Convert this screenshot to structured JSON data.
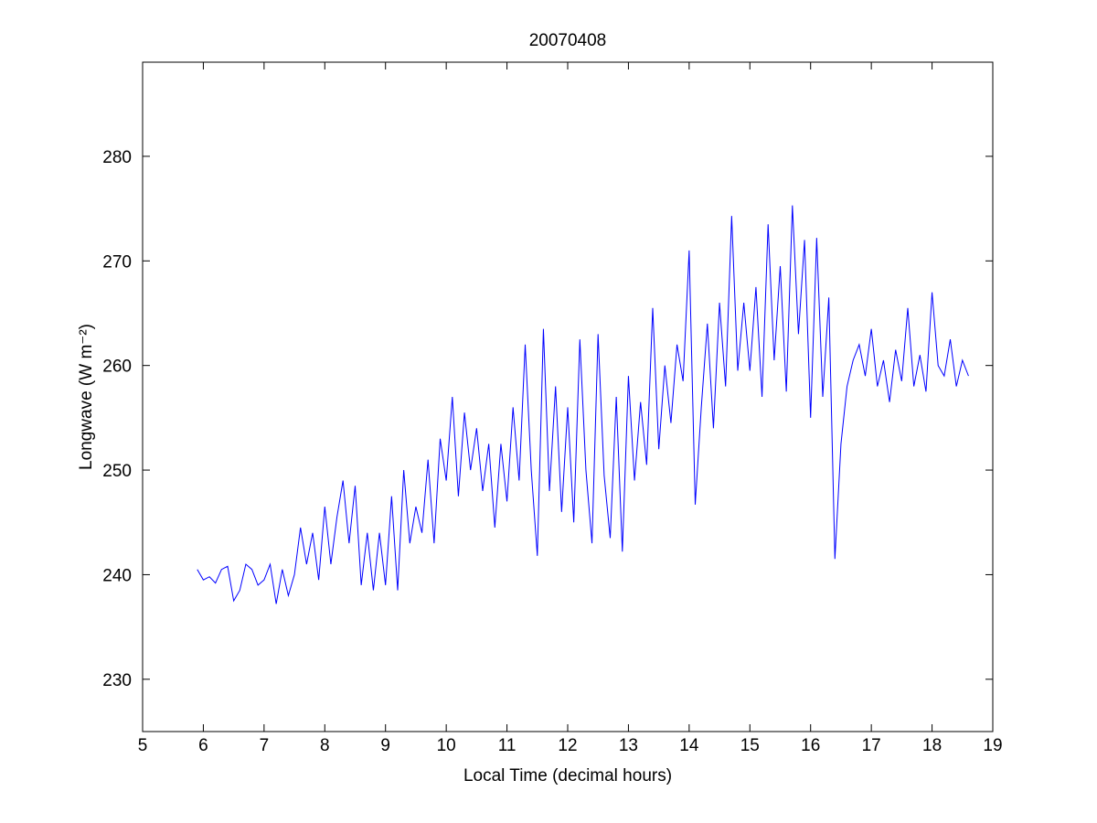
{
  "chart_data": {
    "type": "line",
    "title": "20070408",
    "xlabel": "Local Time (decimal hours)",
    "ylabel": "Longwave (W m⁻²)",
    "xlim": [
      5,
      19
    ],
    "ylim": [
      225,
      289
    ],
    "xticks": [
      5,
      6,
      7,
      8,
      9,
      10,
      11,
      12,
      13,
      14,
      15,
      16,
      17,
      18,
      19
    ],
    "yticks": [
      230,
      240,
      250,
      260,
      270,
      280
    ],
    "x": [
      5.9,
      6.0,
      6.1,
      6.2,
      6.3,
      6.4,
      6.5,
      6.6,
      6.7,
      6.8,
      6.9,
      7.0,
      7.1,
      7.2,
      7.3,
      7.4,
      7.5,
      7.6,
      7.7,
      7.8,
      7.9,
      8.0,
      8.1,
      8.2,
      8.3,
      8.4,
      8.5,
      8.6,
      8.7,
      8.8,
      8.9,
      9.0,
      9.1,
      9.2,
      9.3,
      9.4,
      9.5,
      9.6,
      9.7,
      9.8,
      9.9,
      10.0,
      10.1,
      10.2,
      10.3,
      10.4,
      10.5,
      10.6,
      10.7,
      10.8,
      10.9,
      11.0,
      11.1,
      11.2,
      11.3,
      11.4,
      11.5,
      11.6,
      11.7,
      11.8,
      11.9,
      12.0,
      12.1,
      12.2,
      12.3,
      12.4,
      12.5,
      12.6,
      12.7,
      12.8,
      12.9,
      13.0,
      13.1,
      13.2,
      13.3,
      13.4,
      13.5,
      13.6,
      13.7,
      13.8,
      13.9,
      14.0,
      14.1,
      14.2,
      14.3,
      14.4,
      14.5,
      14.6,
      14.7,
      14.8,
      14.9,
      15.0,
      15.1,
      15.2,
      15.3,
      15.4,
      15.5,
      15.6,
      15.7,
      15.8,
      15.9,
      16.0,
      16.1,
      16.2,
      16.3,
      16.4,
      16.5,
      16.6,
      16.7,
      16.8,
      16.9,
      17.0,
      17.1,
      17.2,
      17.3,
      17.4,
      17.5,
      17.6,
      17.7,
      17.8,
      17.9,
      18.0,
      18.1,
      18.2,
      18.3,
      18.4,
      18.5,
      18.6
    ],
    "series": [
      {
        "color": "#0000ff",
        "values": [
          240.5,
          239.5,
          239.8,
          239.2,
          240.5,
          240.8,
          237.5,
          238.5,
          241,
          240.5,
          239,
          239.5,
          241,
          237.2,
          240.5,
          238,
          240,
          244.5,
          241,
          244,
          239.5,
          246.5,
          241,
          245.5,
          249,
          243,
          248.5,
          239,
          244,
          238.5,
          244,
          239,
          247.5,
          238.5,
          250,
          243,
          246.5,
          244,
          251,
          243,
          253,
          249,
          257,
          247.5,
          255.5,
          250,
          254,
          248,
          252.5,
          244.5,
          252.5,
          247,
          256,
          249,
          262,
          250,
          241.8,
          263.5,
          248,
          258,
          246,
          256,
          245,
          262.5,
          250,
          243,
          263,
          249.5,
          243.5,
          257,
          242.2,
          259,
          249,
          256.5,
          250.5,
          265.5,
          252,
          260,
          254.5,
          262,
          258.5,
          271,
          246.7,
          256,
          264,
          254,
          266,
          258,
          274.3,
          259.5,
          266,
          259.5,
          267.5,
          257,
          273.5,
          260.5,
          269.5,
          257.5,
          275.3,
          263,
          272,
          255,
          272.2,
          257,
          266.5,
          241.5,
          252.5,
          258,
          260.5,
          262,
          259,
          263.5,
          258,
          260.5,
          256.5,
          261.5,
          258.5,
          265.5,
          258,
          261,
          257.5,
          267,
          260,
          259,
          262.5,
          258,
          260.5,
          259
        ]
      }
    ]
  }
}
